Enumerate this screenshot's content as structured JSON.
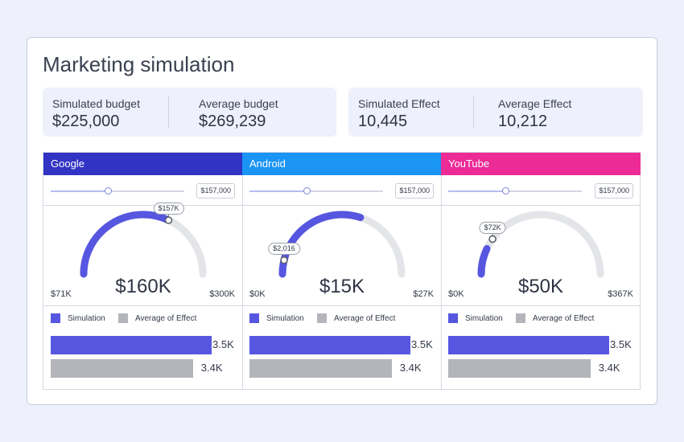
{
  "title": "Marketing simulation",
  "stats_left": [
    {
      "label": "Simulated budget",
      "value": "$225,000"
    },
    {
      "label": "Average budget",
      "value": "$269,239"
    }
  ],
  "stats_right": [
    {
      "label": "Simulated Effect",
      "value": "10,445"
    },
    {
      "label": "Average Effect",
      "value": "10,212"
    }
  ],
  "legend": {
    "simulation": "Simulation",
    "average": "Average of Effect"
  },
  "colors": {
    "simulation": "#5656e0",
    "average": "#b3b5bb",
    "track": "#e4e5e9"
  },
  "channels": [
    {
      "name": "Google",
      "color": "#3133c4",
      "slider_value": "$157,000",
      "slider_fraction": 0.43,
      "gauge_min": "$71K",
      "gauge_max": "$300K",
      "gauge_center": "$160K",
      "gauge_fill_fraction": 0.64,
      "marker_fraction": 0.64,
      "marker_label": "$157K",
      "sim_bar_label": "3.5K",
      "avg_bar_label": "3.4K",
      "sim_bar_value": 3.5,
      "avg_bar_value": 3.4
    },
    {
      "name": "Android",
      "color": "#1a94f5",
      "slider_value": "$157,000",
      "slider_fraction": 0.43,
      "gauge_min": "$0K",
      "gauge_max": "$27K",
      "gauge_center": "$15K",
      "gauge_fill_fraction": 0.6,
      "marker_fraction": 0.075,
      "marker_label": "$2,016",
      "sim_bar_label": "3.5K",
      "avg_bar_label": "3.4K",
      "sim_bar_value": 3.5,
      "avg_bar_value": 3.4
    },
    {
      "name": "YouTube",
      "color": "#ec2b96",
      "slider_value": "$157,000",
      "slider_fraction": 0.43,
      "gauge_min": "$0K",
      "gauge_max": "$367K",
      "gauge_center": "$50K",
      "gauge_fill_fraction": 0.14,
      "marker_fraction": 0.2,
      "marker_label": "$72K",
      "sim_bar_label": "3.5K",
      "avg_bar_label": "3.4K",
      "sim_bar_value": 3.5,
      "avg_bar_value": 3.4
    }
  ]
}
